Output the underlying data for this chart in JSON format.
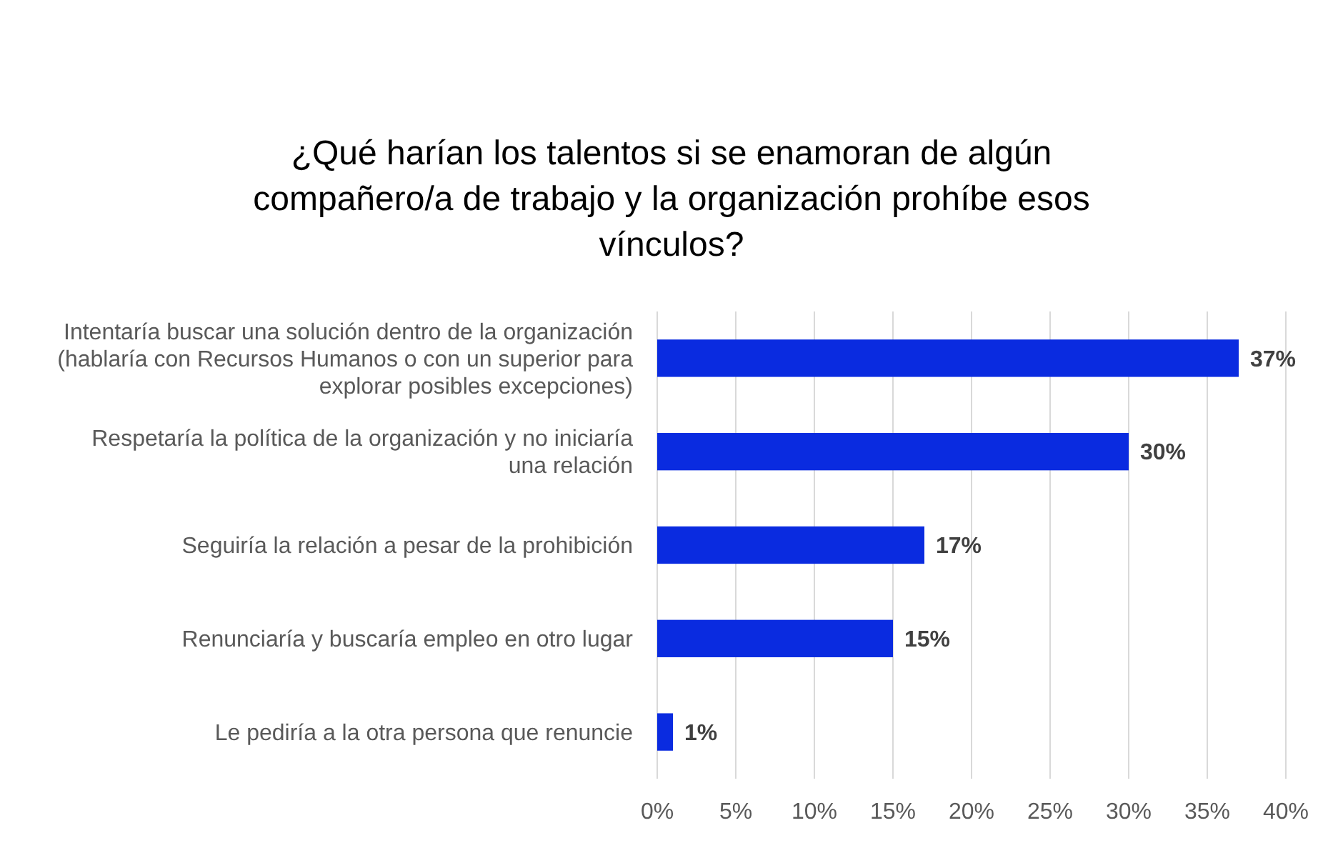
{
  "chart_data": {
    "type": "bar",
    "orientation": "horizontal",
    "title": "¿Qué harían los talentos si se enamoran de algún compañero/a de trabajo y la organización prohíbe esos vínculos?",
    "categories": [
      "Intentaría buscar una solución dentro de la organización (hablaría con Recursos Humanos o con un superior para explorar posibles excepciones)",
      "Respetaría la política de la organización y no iniciaría una relación",
      "Seguiría la relación a pesar de la prohibición",
      "Renunciaría y buscaría empleo en otro lugar",
      "Le pediría a la otra persona que renuncie"
    ],
    "values": [
      37,
      30,
      17,
      15,
      1
    ],
    "value_labels": [
      "37%",
      "30%",
      "17%",
      "15%",
      "1%"
    ],
    "color": "#0a2be0",
    "xlim": [
      0,
      40
    ],
    "xticks": [
      {
        "value": 0,
        "label": "0%"
      },
      {
        "value": 5,
        "label": "5%"
      },
      {
        "value": 10,
        "label": "10%"
      },
      {
        "value": 15,
        "label": "15%"
      },
      {
        "value": 20,
        "label": "20%"
      },
      {
        "value": 25,
        "label": "25%"
      },
      {
        "value": 30,
        "label": "30%"
      },
      {
        "value": 35,
        "label": "35%"
      },
      {
        "value": 40,
        "label": "40%"
      }
    ],
    "grid": "x"
  }
}
